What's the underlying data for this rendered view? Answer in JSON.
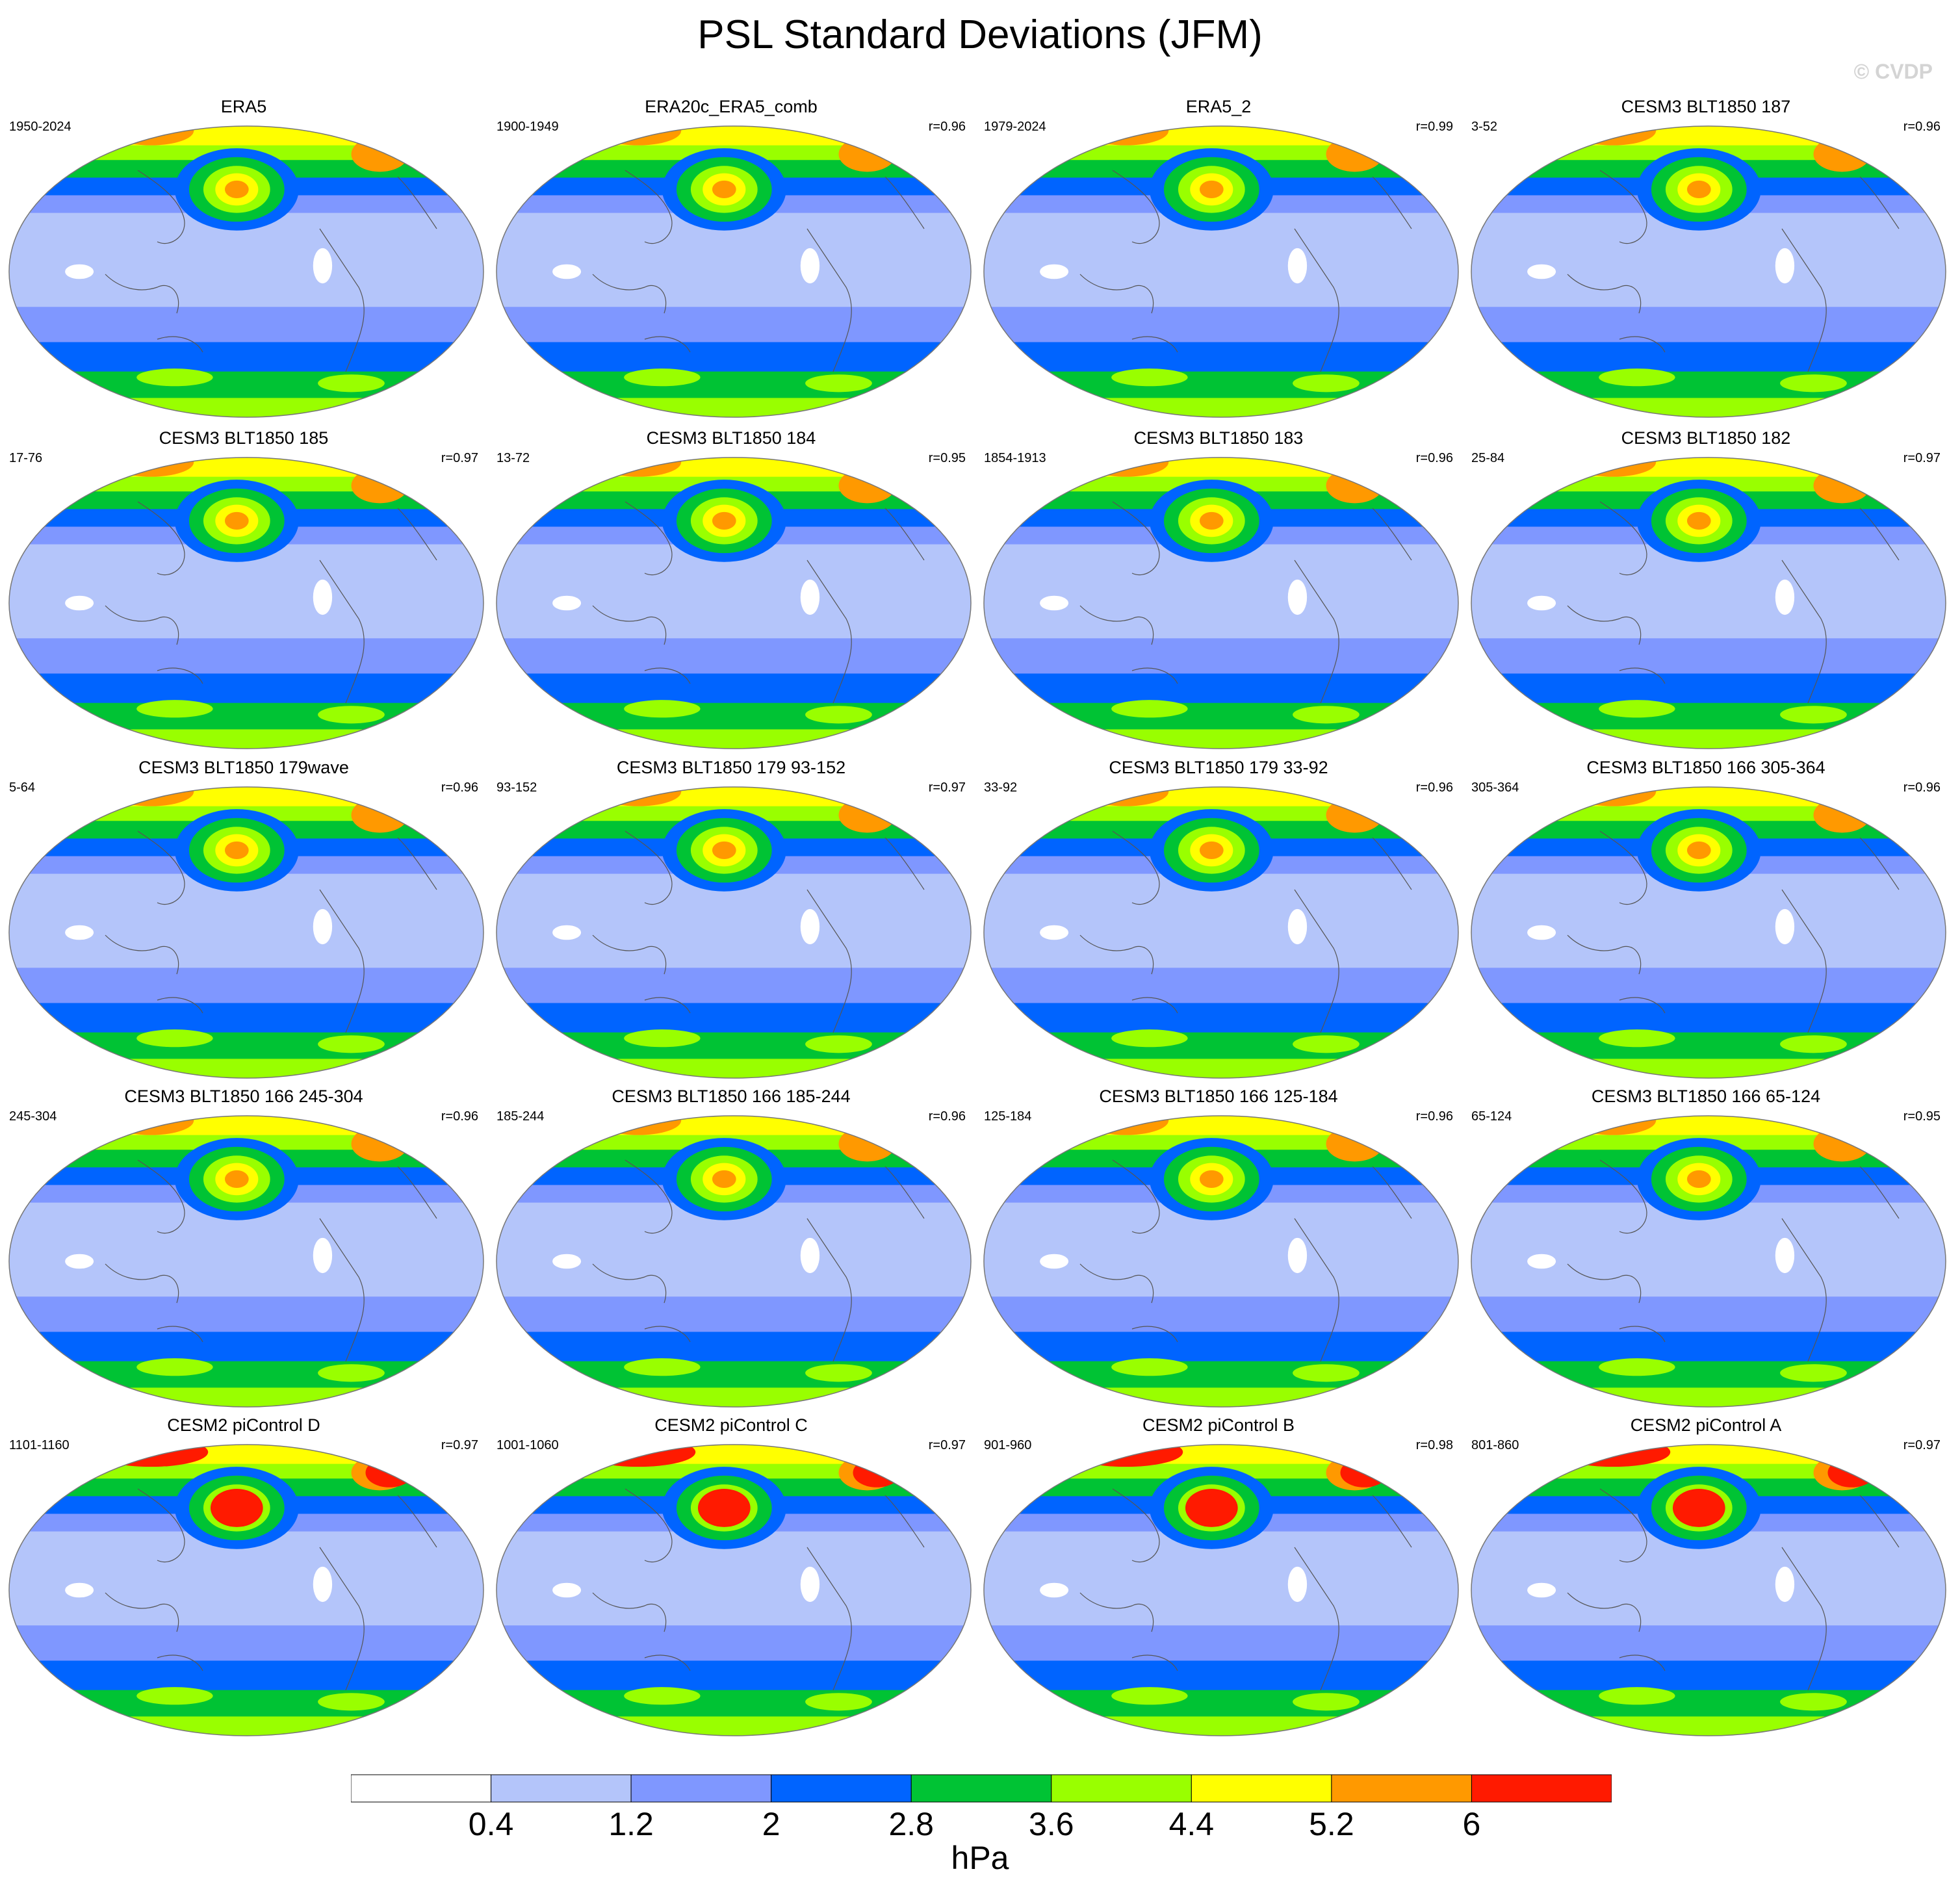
{
  "title": "PSL Standard Deviations (JFM)",
  "copyright": "© CVDP",
  "colorbar": {
    "unit": "hPa",
    "levels": [
      "0.4",
      "1.2",
      "2",
      "2.8",
      "3.6",
      "4.4",
      "5.2",
      "6"
    ],
    "colors": [
      "#ffffff",
      "#b4c5fa",
      "#7f97ff",
      "#0064ff",
      "#00c334",
      "#99ff00",
      "#ffff00",
      "#ff9900",
      "#ff1a00"
    ]
  },
  "panels": [
    {
      "name": "ERA5",
      "years": "1950-2024",
      "r": ""
    },
    {
      "name": "ERA20c_ERA5_comb",
      "years": "1900-1949",
      "r": "r=0.96"
    },
    {
      "name": "ERA5_2",
      "years": "1979-2024",
      "r": "r=0.99"
    },
    {
      "name": "CESM3 BLT1850 187",
      "years": "3-52",
      "r": "r=0.96"
    },
    {
      "name": "CESM3 BLT1850 185",
      "years": "17-76",
      "r": "r=0.97"
    },
    {
      "name": "CESM3 BLT1850 184",
      "years": "13-72",
      "r": "r=0.95"
    },
    {
      "name": "CESM3 BLT1850 183",
      "years": "1854-1913",
      "r": "r=0.96"
    },
    {
      "name": "CESM3 BLT1850 182",
      "years": "25-84",
      "r": "r=0.97"
    },
    {
      "name": "CESM3 BLT1850 179wave",
      "years": "5-64",
      "r": "r=0.96"
    },
    {
      "name": "CESM3 BLT1850 179 93-152",
      "years": "93-152",
      "r": "r=0.97"
    },
    {
      "name": "CESM3 BLT1850 179 33-92",
      "years": "33-92",
      "r": "r=0.96"
    },
    {
      "name": "CESM3 BLT1850 166 305-364",
      "years": "305-364",
      "r": "r=0.96"
    },
    {
      "name": "CESM3 BLT1850 166 245-304",
      "years": "245-304",
      "r": "r=0.96"
    },
    {
      "name": "CESM3 BLT1850 166 185-244",
      "years": "185-244",
      "r": "r=0.96"
    },
    {
      "name": "CESM3 BLT1850 166 125-184",
      "years": "125-184",
      "r": "r=0.96"
    },
    {
      "name": "CESM3 BLT1850 166 65-124",
      "years": "65-124",
      "r": "r=0.95"
    },
    {
      "name": "CESM2 piControl D",
      "years": "1101-1160",
      "r": "r=0.97"
    },
    {
      "name": "CESM2 piControl C",
      "years": "1001-1060",
      "r": "r=0.97"
    },
    {
      "name": "CESM2 piControl B",
      "years": "901-960",
      "r": "r=0.98"
    },
    {
      "name": "CESM2 piControl A",
      "years": "801-860",
      "r": "r=0.97"
    }
  ]
}
